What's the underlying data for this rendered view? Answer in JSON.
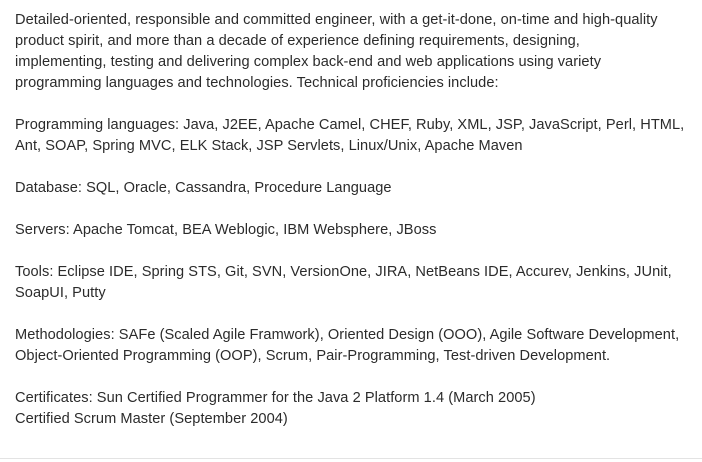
{
  "summary": {
    "intro": [
      "Detailed-oriented, responsible and committed engineer, with a get-it-done, on-time and high-quality",
      "product spirit, and more than a decade of experience defining requirements, designing,",
      "implementing, testing and delivering complex back-end and web applications using variety",
      "programming languages and technologies. Technical proficiencies include:"
    ],
    "programming": [
      "Programming languages: Java, J2EE, Apache Camel, CHEF, Ruby, XML, JSP, JavaScript, Perl, HTML,",
      "Ant, SOAP, Spring MVC, ELK Stack, JSP Servlets, Linux/Unix, Apache Maven"
    ],
    "database": "Database: SQL, Oracle, Cassandra, Procedure Language",
    "servers": "Servers: Apache Tomcat, BEA Weblogic, IBM Websphere, JBoss",
    "tools": [
      "Tools: Eclipse IDE, Spring STS, Git, SVN, VersionOne, JIRA, NetBeans IDE, Accurev, Jenkins, JUnit,",
      "SoapUI, Putty"
    ],
    "methodologies": [
      "Methodologies: SAFe (Scaled Agile Framwork), Oriented Design (OOO), Agile Software Development,",
      "Object-Oriented Programming (OOP), Scrum, Pair-Programming, Test-driven Development."
    ],
    "certificates": [
      "Certificates: Sun Certified Programmer for the Java 2 Platform 1.4 (March 2005)",
      "Certified Scrum Master (September 2004)"
    ]
  }
}
